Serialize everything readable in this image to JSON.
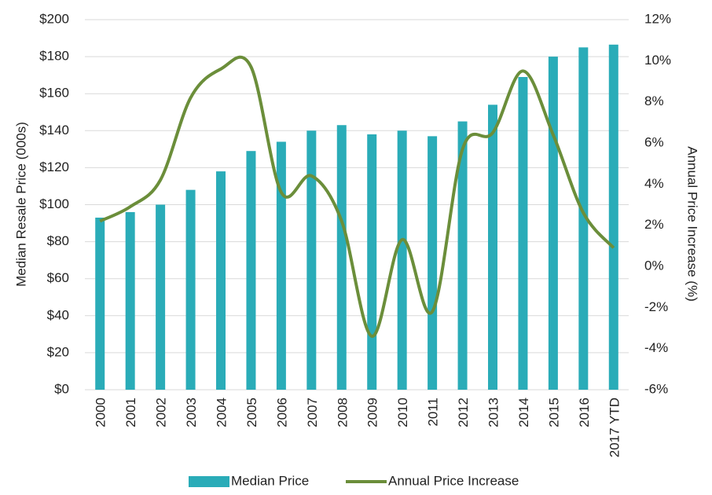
{
  "chart_data": {
    "type": "bar_line",
    "categories": [
      "2000",
      "2001",
      "2002",
      "2003",
      "2004",
      "2005",
      "2006",
      "2007",
      "2008",
      "2009",
      "2010",
      "2011",
      "2012",
      "2013",
      "2014",
      "2015",
      "2016",
      "2017 YTD"
    ],
    "series": [
      {
        "name": "Median Price",
        "type": "bar",
        "color": "#2aacb8",
        "values": [
          93,
          96,
          100,
          108,
          118,
          129,
          134,
          140,
          143,
          138,
          140,
          137,
          145,
          154,
          169,
          180,
          185,
          186.5
        ]
      },
      {
        "name": "Annual Price Increase",
        "type": "line",
        "axis": "y2",
        "color": "#6b8e3a",
        "values": [
          2.2,
          2.9,
          4.2,
          8.2,
          9.6,
          9.7,
          3.6,
          4.4,
          2.2,
          -3.4,
          1.3,
          -2.2,
          5.7,
          6.5,
          9.5,
          6.4,
          2.6,
          0.9
        ]
      }
    ],
    "ylabel": "Median Resale Price (000s)",
    "y2label": "Annual Price Increase (%)",
    "ylim": [
      0,
      200
    ],
    "yticks": [
      {
        "value": 0,
        "label": "$0"
      },
      {
        "value": 20,
        "label": "$20"
      },
      {
        "value": 40,
        "label": "$40"
      },
      {
        "value": 60,
        "label": "$60"
      },
      {
        "value": 80,
        "label": "$80"
      },
      {
        "value": 100,
        "label": "$100"
      },
      {
        "value": 120,
        "label": "$120"
      },
      {
        "value": 140,
        "label": "$140"
      },
      {
        "value": 160,
        "label": "$160"
      },
      {
        "value": 180,
        "label": "$180"
      },
      {
        "value": 200,
        "label": "$200"
      }
    ],
    "y2lim": [
      -6,
      12
    ],
    "y2ticks": [
      {
        "value": -6,
        "label": "-6%"
      },
      {
        "value": -4,
        "label": "-4%"
      },
      {
        "value": -2,
        "label": "-2%"
      },
      {
        "value": 0,
        "label": "0%"
      },
      {
        "value": 2,
        "label": "2%"
      },
      {
        "value": 4,
        "label": "4%"
      },
      {
        "value": 6,
        "label": "6%"
      },
      {
        "value": 8,
        "label": "8%"
      },
      {
        "value": 10,
        "label": "10%"
      },
      {
        "value": 12,
        "label": "12%"
      }
    ],
    "grid": true,
    "legend": "bottom"
  }
}
